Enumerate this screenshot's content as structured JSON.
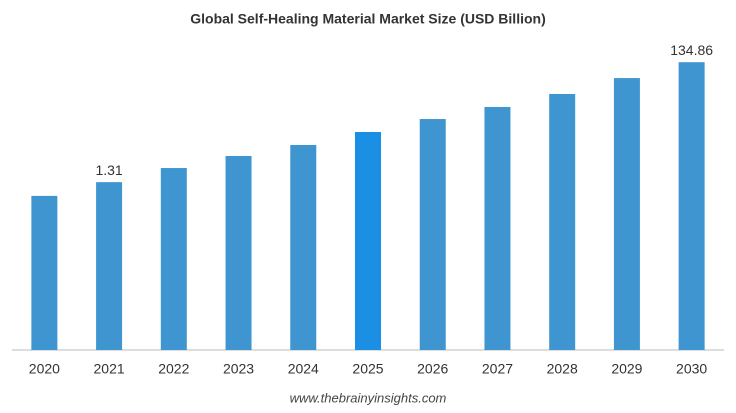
{
  "chart_data": {
    "type": "bar",
    "title": "Global Self-Healing Material Market Size (USD Billion)",
    "categories": [
      "2020",
      "2021",
      "2022",
      "2023",
      "2024",
      "2025",
      "2026",
      "2027",
      "2028",
      "2029",
      "2030"
    ],
    "values": [
      0.77,
      1.31,
      2.26,
      3.6,
      5.5,
      9.1,
      15.0,
      23.9,
      39.5,
      73,
      134.86
    ],
    "value_labels": [
      null,
      "1.31",
      null,
      null,
      null,
      null,
      null,
      null,
      null,
      null,
      "134.86"
    ],
    "colors": [
      "#3f95cf",
      "#3f95cf",
      "#3f95cf",
      "#3f95cf",
      "#3f95cf",
      "#1a8fe3",
      "#3f95cf",
      "#3f95cf",
      "#3f95cf",
      "#3f95cf",
      "#3f95cf"
    ],
    "log_scale": true,
    "ylim": [
      0.002,
      300
    ],
    "source": "www.thebrainyinsights.com"
  }
}
